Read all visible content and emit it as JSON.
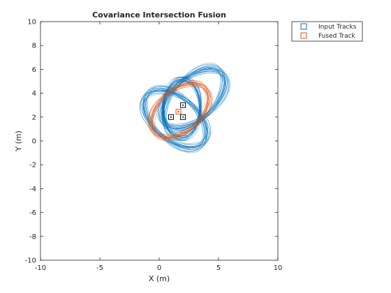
{
  "chart_data": {
    "type": "scatter",
    "title": "Covariance Intersection Fusion",
    "xlabel": "X (m)",
    "ylabel": "Y (m)",
    "xlim": [
      -10,
      10
    ],
    "ylim": [
      -10,
      10
    ],
    "xticks": [
      -10,
      -5,
      0,
      5,
      10
    ],
    "yticks": [
      -10,
      -8,
      -6,
      -4,
      -2,
      0,
      2,
      4,
      6,
      8,
      10
    ],
    "grid": false,
    "legend_position": "outside-top-right",
    "series": [
      {
        "name": "Input Tracks",
        "color": "#0072bd",
        "marker": "square",
        "points": [
          [
            1,
            2
          ],
          [
            2,
            3
          ],
          [
            2,
            2
          ]
        ]
      },
      {
        "name": "Fused Track",
        "color": "#d95319",
        "marker": "square",
        "points": [
          [
            1.62,
            2.45
          ]
        ]
      }
    ],
    "ellipse_color_input": "#0072bd",
    "ellipse_color_fused": "#d95319"
  }
}
